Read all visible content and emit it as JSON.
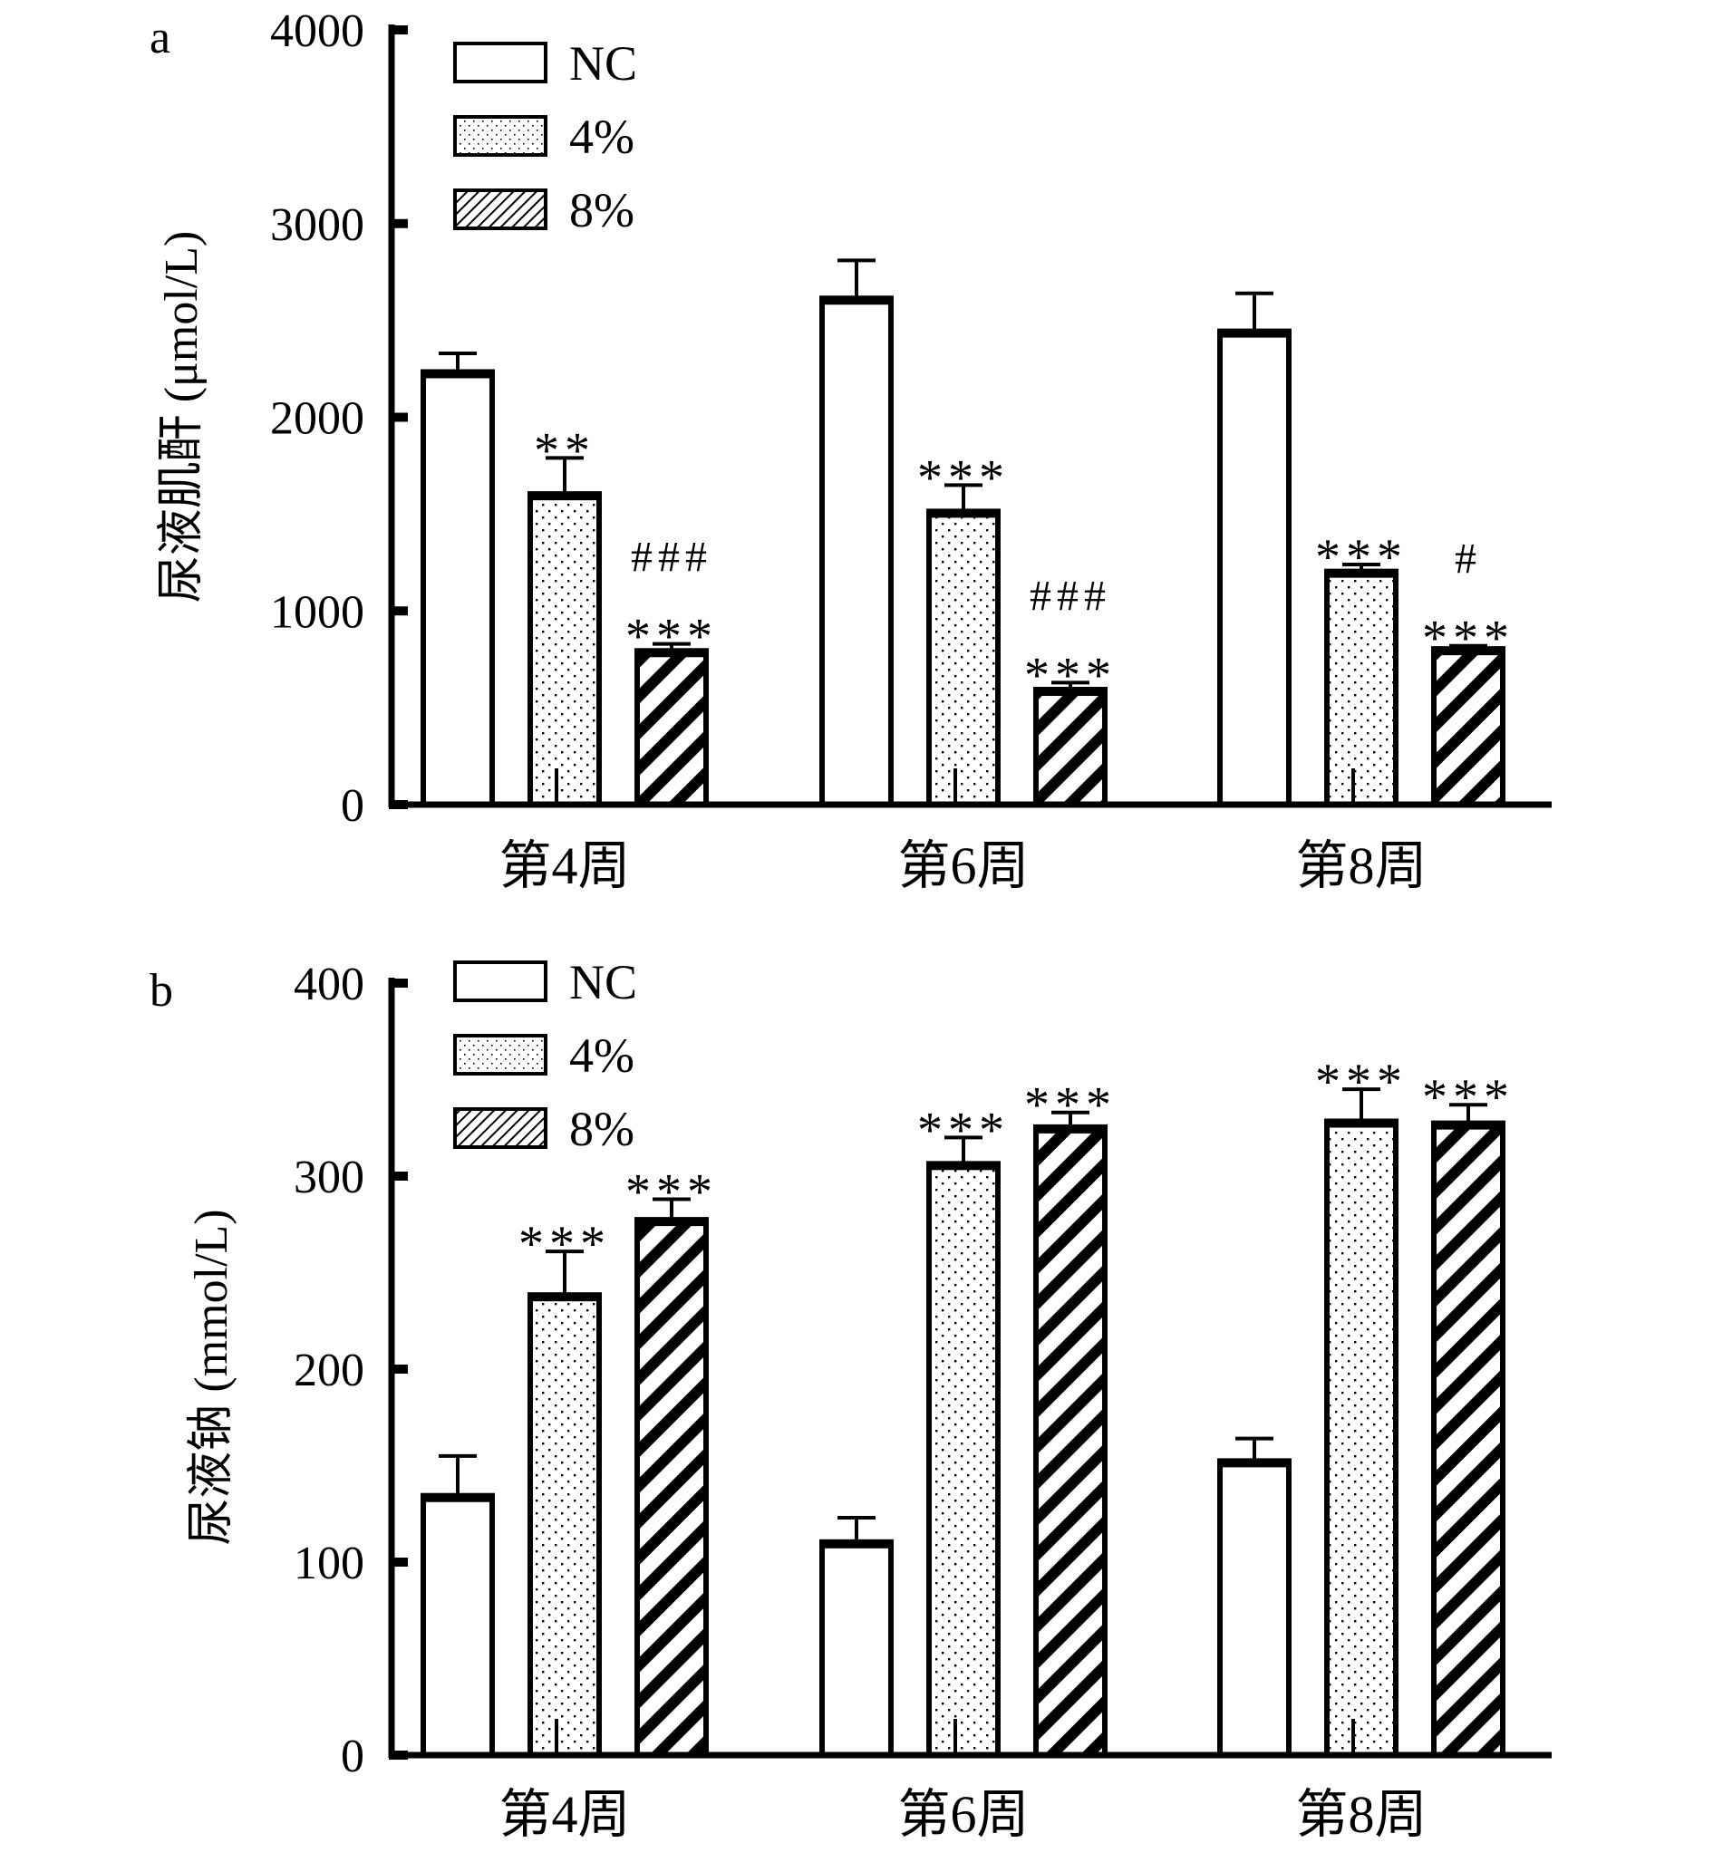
{
  "chart_data": [
    {
      "panel_label": "a",
      "type": "bar",
      "ylabel": "尿液肌酐 (μmol/L)",
      "xlabel": "",
      "ylim": [
        0,
        4000
      ],
      "yticks": [
        0,
        1000,
        2000,
        3000,
        4000
      ],
      "categories": [
        "第4周",
        "第6周",
        "第8周"
      ],
      "legend_position": "top-left",
      "series": [
        {
          "name": "NC",
          "pattern": "empty",
          "values": [
            2220,
            2600,
            2430
          ],
          "errors": [
            110,
            210,
            210
          ],
          "annotations": [
            "",
            "",
            ""
          ]
        },
        {
          "name": "4%",
          "pattern": "dots",
          "values": [
            1590,
            1500,
            1190
          ],
          "errors": [
            200,
            150,
            50
          ],
          "annotations": [
            "**",
            "***",
            "***"
          ]
        },
        {
          "name": "8%",
          "pattern": "hatch",
          "values": [
            780,
            580,
            790
          ],
          "errors": [
            50,
            50,
            30
          ],
          "annotations": [
            "###\n***",
            "###\n***",
            "#\n***"
          ]
        }
      ]
    },
    {
      "panel_label": "b",
      "type": "bar",
      "ylabel": "尿液钠 (mmol/L)",
      "xlabel": "",
      "ylim": [
        0,
        400
      ],
      "yticks": [
        0,
        100,
        200,
        300,
        400
      ],
      "categories": [
        "第4周",
        "第6周",
        "第8周"
      ],
      "legend_position": "top-left",
      "series": [
        {
          "name": "NC",
          "pattern": "empty",
          "values": [
            133,
            109,
            151
          ],
          "errors": [
            22,
            14,
            13
          ],
          "annotations": [
            "",
            "",
            ""
          ]
        },
        {
          "name": "4%",
          "pattern": "dots",
          "values": [
            237,
            305,
            327
          ],
          "errors": [
            24,
            15,
            18
          ],
          "annotations": [
            "***",
            "***",
            "***"
          ]
        },
        {
          "name": "8%",
          "pattern": "hatch",
          "values": [
            276,
            324,
            326
          ],
          "errors": [
            12,
            9,
            11
          ],
          "annotations": [
            "***",
            "***",
            "***"
          ]
        }
      ]
    }
  ]
}
